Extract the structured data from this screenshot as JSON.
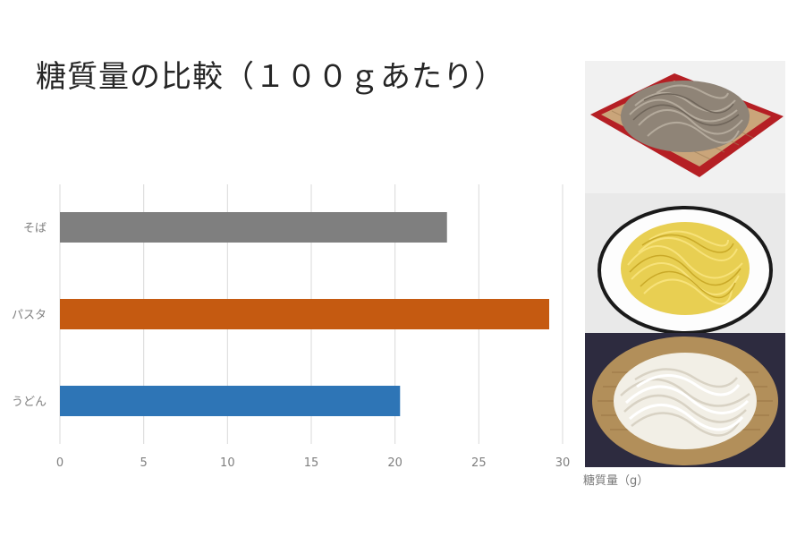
{
  "title": "糖質量の比較（１００ｇあたり）",
  "chart_data": {
    "type": "bar",
    "orientation": "horizontal",
    "title": "糖質量の比較（１００ｇあたり）",
    "xlabel": "糖質量（g）",
    "ylabel": "",
    "categories": [
      "そば",
      "パスタ",
      "うどん"
    ],
    "values": [
      23.1,
      29.2,
      20.3
    ],
    "colors": [
      "#7f7f7f",
      "#c55a11",
      "#2e75b6"
    ],
    "xlim": [
      0,
      30
    ],
    "xticks": [
      "0",
      "5",
      "10",
      "15",
      "20",
      "25",
      "30"
    ],
    "grid": true
  },
  "photos": [
    {
      "subject": "soba-noodles-on-tray"
    },
    {
      "subject": "pasta-on-plate"
    },
    {
      "subject": "udon-in-basket"
    }
  ]
}
